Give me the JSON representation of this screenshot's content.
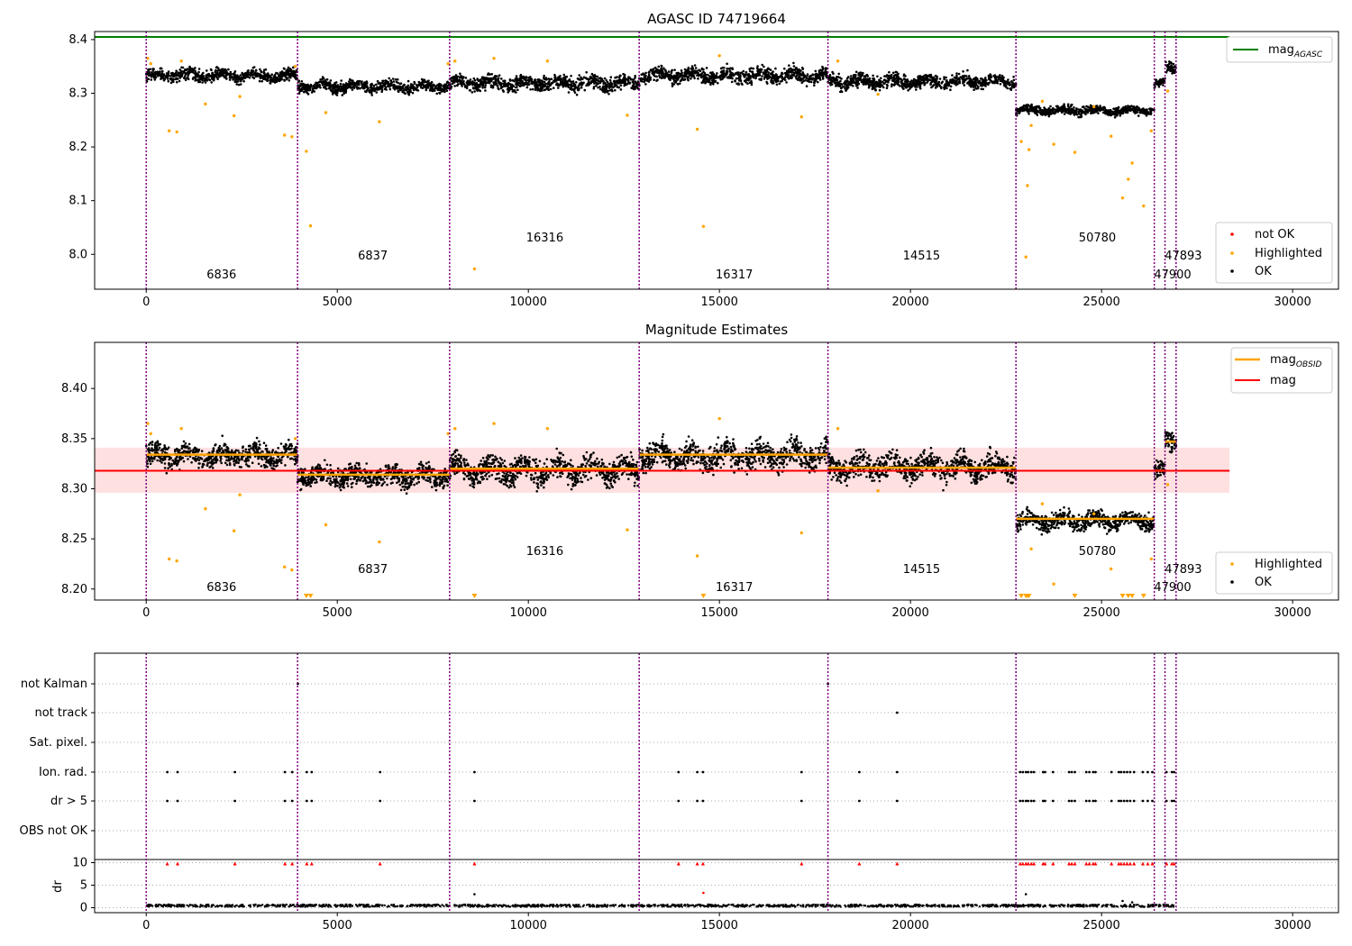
{
  "chart_data": [
    {
      "type": "scatter",
      "title": "AGASC ID 74719664",
      "xlim": [
        -1350,
        31200
      ],
      "ylim": [
        7.935,
        8.415
      ],
      "xticks": [
        0,
        5000,
        10000,
        15000,
        20000,
        25000,
        30000
      ],
      "xtick_labels": [
        "0",
        "5000",
        "10000",
        "15000",
        "20000",
        "25000",
        "30000"
      ],
      "yticks": [
        8.0,
        8.1,
        8.2,
        8.3,
        8.4
      ],
      "ytick_labels": [
        "8.0",
        "8.1",
        "8.2",
        "8.3",
        "8.4"
      ],
      "hlines": [
        {
          "name": "mag_AGASC",
          "y": 8.405,
          "x": [
            -1350,
            28350
          ],
          "color": "#008000"
        }
      ],
      "legend_top": {
        "position": "top-right",
        "entries": [
          {
            "label": "mag",
            "sub": "AGASC",
            "color": "#008000",
            "marker": "line"
          }
        ]
      },
      "legend_bottom": {
        "position": "bottom-right",
        "entries": [
          {
            "label": "not OK",
            "color": "#ff0000",
            "marker": "dot"
          },
          {
            "label": "Highlighted",
            "color": "#ffa500",
            "marker": "dot"
          },
          {
            "label": "OK",
            "color": "#000000",
            "marker": "dot"
          }
        ]
      },
      "obsid_labels": [
        {
          "text": "6836",
          "x": 1970,
          "y": 7.955
        },
        {
          "text": "6837",
          "x": 5930,
          "y": 7.99
        },
        {
          "text": "16316",
          "x": 10430,
          "y": 8.024
        },
        {
          "text": "16317",
          "x": 15390,
          "y": 7.955
        },
        {
          "text": "14515",
          "x": 20290,
          "y": 7.99
        },
        {
          "text": "50780",
          "x": 24890,
          "y": 8.024
        },
        {
          "text": "47893",
          "x": 27140,
          "y": 7.99
        },
        {
          "text": "47900",
          "x": 26860,
          "y": 7.955
        }
      ],
      "series": [
        {
          "name": "OK",
          "color": "#000000",
          "segments": [
            {
              "x": [
                0,
                3960
              ],
              "y": 8.333,
              "spread": 0.011
            },
            {
              "x": [
                3960,
                7940
              ],
              "y": 8.313,
              "spread": 0.01
            },
            {
              "x": [
                7940,
                12900
              ],
              "y": 8.319,
              "spread": 0.013
            },
            {
              "x": [
                12900,
                17840
              ],
              "y": 8.333,
              "spread": 0.013
            },
            {
              "x": [
                17840,
                22760
              ],
              "y": 8.322,
              "spread": 0.012
            },
            {
              "x": [
                22760,
                26380
              ],
              "y": 8.268,
              "spread": 0.008
            },
            {
              "x": [
                26380,
                26660
              ],
              "y": 8.318,
              "spread": 0.008
            },
            {
              "x": [
                26660,
                26950
              ],
              "y": 8.347,
              "spread": 0.01
            }
          ]
        },
        {
          "name": "Highlighted",
          "color": "#ffa500",
          "points": [
            [
              40,
              8.365
            ],
            [
              120,
              8.355
            ],
            [
              600,
              8.23
            ],
            [
              800,
              8.228
            ],
            [
              920,
              8.36
            ],
            [
              1550,
              8.28
            ],
            [
              2300,
              8.258
            ],
            [
              2450,
              8.294
            ],
            [
              3620,
              8.222
            ],
            [
              3810,
              8.219
            ],
            [
              3900,
              8.35
            ],
            [
              4190,
              8.192
            ],
            [
              4300,
              8.053
            ],
            [
              4700,
              8.264
            ],
            [
              6100,
              8.247
            ],
            [
              7900,
              8.355
            ],
            [
              8080,
              8.36
            ],
            [
              8590,
              7.973
            ],
            [
              9100,
              8.365
            ],
            [
              10500,
              8.36
            ],
            [
              12590,
              8.259
            ],
            [
              14420,
              8.233
            ],
            [
              14580,
              8.052
            ],
            [
              15000,
              8.37
            ],
            [
              17150,
              8.256
            ],
            [
              18100,
              8.36
            ],
            [
              19150,
              8.298
            ],
            [
              22900,
              8.21
            ],
            [
              23020,
              7.995
            ],
            [
              23060,
              8.128
            ],
            [
              23100,
              8.195
            ],
            [
              23160,
              8.24
            ],
            [
              23450,
              8.285
            ],
            [
              23750,
              8.205
            ],
            [
              24300,
              8.19
            ],
            [
              24800,
              8.275
            ],
            [
              25250,
              8.22
            ],
            [
              25550,
              8.105
            ],
            [
              25700,
              8.14
            ],
            [
              25800,
              8.17
            ],
            [
              26100,
              8.09
            ],
            [
              26300,
              8.23
            ],
            [
              26730,
              8.304
            ]
          ]
        }
      ],
      "obsid_boundaries": [
        0,
        3960,
        7940,
        12900,
        17840,
        22760,
        26380,
        26660,
        26950
      ]
    },
    {
      "type": "scatter",
      "title": "Magnitude Estimates",
      "xlim": [
        -1350,
        31200
      ],
      "ylim": [
        8.189,
        8.446
      ],
      "xticks": [
        0,
        5000,
        10000,
        15000,
        20000,
        25000,
        30000
      ],
      "xtick_labels": [
        "0",
        "5000",
        "10000",
        "15000",
        "20000",
        "25000",
        "30000"
      ],
      "yticks": [
        8.2,
        8.25,
        8.3,
        8.35,
        8.4
      ],
      "ytick_labels": [
        "8.20",
        "8.25",
        "8.30",
        "8.35",
        "8.40"
      ],
      "mag": {
        "y": 8.318,
        "band": [
          8.296,
          8.341
        ],
        "x": [
          -1350,
          28350
        ],
        "color": "#ff0000"
      },
      "mag_obsid": [
        {
          "x": [
            0,
            3960
          ],
          "y": 8.334
        },
        {
          "x": [
            3960,
            7940
          ],
          "y": 8.314
        },
        {
          "x": [
            7940,
            12900
          ],
          "y": 8.32
        },
        {
          "x": [
            12900,
            17840
          ],
          "y": 8.334
        },
        {
          "x": [
            17840,
            22760
          ],
          "y": 8.321
        },
        {
          "x": [
            22760,
            26380
          ],
          "y": 8.27
        },
        {
          "x": [
            26380,
            26660
          ],
          "y": 8.318
        },
        {
          "x": [
            26660,
            26950
          ],
          "y": 8.347
        }
      ],
      "legend_top": {
        "position": "top-right",
        "entries": [
          {
            "label": "mag",
            "sub": "OBSID",
            "color": "#ffa500",
            "marker": "line"
          },
          {
            "label": "mag",
            "sub": "",
            "color": "#ff0000",
            "marker": "line"
          }
        ]
      },
      "legend_bottom": {
        "position": "bottom-right",
        "entries": [
          {
            "label": "Highlighted",
            "color": "#ffa500",
            "marker": "dot"
          },
          {
            "label": "OK",
            "color": "#000000",
            "marker": "dot"
          }
        ]
      },
      "obsid_labels": [
        {
          "text": "6836",
          "x": 1970,
          "y": 8.198
        },
        {
          "text": "6837",
          "x": 5930,
          "y": 8.216
        },
        {
          "text": "16316",
          "x": 10430,
          "y": 8.234
        },
        {
          "text": "16317",
          "x": 15390,
          "y": 8.198
        },
        {
          "text": "14515",
          "x": 20290,
          "y": 8.216
        },
        {
          "text": "50780",
          "x": 24890,
          "y": 8.234
        },
        {
          "text": "47893",
          "x": 27140,
          "y": 8.216
        },
        {
          "text": "47900",
          "x": 26860,
          "y": 8.198
        }
      ],
      "series": [
        {
          "name": "OK",
          "color": "#000000",
          "segments": [
            {
              "x": [
                0,
                3960
              ],
              "y": 8.333,
              "spread": 0.011
            },
            {
              "x": [
                3960,
                7940
              ],
              "y": 8.313,
              "spread": 0.01
            },
            {
              "x": [
                7940,
                12900
              ],
              "y": 8.319,
              "spread": 0.013
            },
            {
              "x": [
                12900,
                17840
              ],
              "y": 8.333,
              "spread": 0.013
            },
            {
              "x": [
                17840,
                22760
              ],
              "y": 8.322,
              "spread": 0.012
            },
            {
              "x": [
                22760,
                26380
              ],
              "y": 8.268,
              "spread": 0.008
            },
            {
              "x": [
                26380,
                26660
              ],
              "y": 8.318,
              "spread": 0.008
            },
            {
              "x": [
                26660,
                26950
              ],
              "y": 8.347,
              "spread": 0.01
            }
          ]
        },
        {
          "name": "Highlighted",
          "color": "#ffa500",
          "points": [
            [
              40,
              8.365
            ],
            [
              120,
              8.355
            ],
            [
              600,
              8.23
            ],
            [
              800,
              8.228
            ],
            [
              920,
              8.36
            ],
            [
              1550,
              8.28
            ],
            [
              2300,
              8.258
            ],
            [
              2450,
              8.294
            ],
            [
              3620,
              8.222
            ],
            [
              3810,
              8.219
            ],
            [
              3900,
              8.35
            ],
            [
              4700,
              8.264
            ],
            [
              6100,
              8.247
            ],
            [
              7900,
              8.355
            ],
            [
              8080,
              8.36
            ],
            [
              9100,
              8.365
            ],
            [
              10500,
              8.36
            ],
            [
              12590,
              8.259
            ],
            [
              14420,
              8.233
            ],
            [
              15000,
              8.37
            ],
            [
              17150,
              8.256
            ],
            [
              18100,
              8.36
            ],
            [
              19150,
              8.298
            ],
            [
              23160,
              8.24
            ],
            [
              23450,
              8.285
            ],
            [
              23750,
              8.205
            ],
            [
              24800,
              8.275
            ],
            [
              25250,
              8.22
            ],
            [
              26300,
              8.23
            ],
            [
              26730,
              8.304
            ]
          ]
        },
        {
          "name": "Highlighted (below range)",
          "color": "#ffa500",
          "marker": "triangle-down",
          "x": [
            4190,
            4300,
            8590,
            14580,
            22900,
            23020,
            23060,
            23100,
            24300,
            25550,
            25700,
            25800,
            26100
          ]
        }
      ],
      "obsid_boundaries": [
        0,
        3960,
        7940,
        12900,
        17840,
        22760,
        26380,
        26660,
        26950
      ]
    },
    {
      "type": "scatter",
      "title": "",
      "xlim": [
        -1350,
        31200
      ],
      "xticks": [
        0,
        5000,
        10000,
        15000,
        20000,
        25000,
        30000
      ],
      "xtick_labels": [
        "0",
        "5000",
        "10000",
        "15000",
        "20000",
        "25000",
        "30000"
      ],
      "flag_rows": [
        "not Kalman",
        "not track",
        "Sat. pixel.",
        "Ion. rad.",
        "dr > 5",
        "OBS not OK"
      ],
      "flags": {
        "not Kalman": [
          3970,
          17840
        ],
        "not track": [
          19650
        ],
        "Sat. pixel.": [],
        "Ion. rad.": [
          550,
          820,
          2320,
          3630,
          3820,
          4200,
          4330,
          6120,
          8590,
          13930,
          14420,
          14570,
          17150,
          18660,
          19650,
          22870,
          22940,
          23020,
          23080,
          23160,
          23230,
          23470,
          23520,
          23730,
          24150,
          24220,
          24300,
          24600,
          24680,
          24780,
          24840,
          25260,
          25450,
          25510,
          25590,
          25670,
          25750,
          25850,
          26080,
          26210,
          26330,
          26700,
          26840,
          26900
        ],
        "dr > 5": [
          550,
          820,
          2320,
          3630,
          3820,
          4200,
          4330,
          6120,
          8590,
          13930,
          14420,
          14570,
          17150,
          18660,
          19650,
          22870,
          22940,
          23020,
          23080,
          23160,
          23230,
          23470,
          23520,
          23730,
          24150,
          24220,
          24300,
          24600,
          24680,
          24780,
          24840,
          25260,
          25450,
          25510,
          25590,
          25670,
          25750,
          25850,
          26080,
          26210,
          26330,
          26700,
          26840,
          26900
        ],
        "OBS not OK": []
      },
      "dr": {
        "ylabel": "dr",
        "ylim": [
          -0.3,
          10.3
        ],
        "yticks": [
          0,
          5,
          10
        ],
        "ytick_labels": [
          "0",
          "5",
          "10"
        ],
        "baseline": 0.2,
        "spikes": [
          [
            8590,
            3.0
          ],
          [
            14580,
            3.3
          ],
          [
            23020,
            3.0
          ],
          [
            25550,
            1.5
          ],
          [
            25800,
            1.2
          ]
        ],
        "clipped_x": [
          550,
          820,
          2320,
          3630,
          3820,
          4200,
          4330,
          6120,
          8590,
          13930,
          14420,
          14570,
          17150,
          18660,
          19650,
          22870,
          22940,
          23020,
          23080,
          23160,
          23230,
          23470,
          23520,
          23730,
          24150,
          24220,
          24300,
          24600,
          24680,
          24780,
          24840,
          25260,
          25450,
          25510,
          25590,
          25670,
          25750,
          25850,
          26080,
          26210,
          26330,
          26700,
          26840,
          26900
        ]
      },
      "obsid_boundaries": [
        0,
        3960,
        7940,
        12900,
        17840,
        22760,
        26380,
        26660,
        26950
      ]
    }
  ]
}
